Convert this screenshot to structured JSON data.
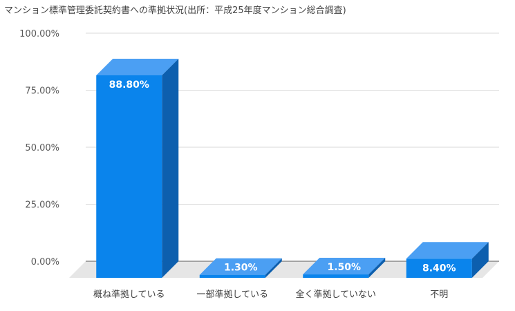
{
  "chart_data": {
    "type": "bar",
    "title": "マンション標準管理委託契約書への準拠状況(出所：平成25年度マンション総合調査)",
    "categories": [
      "概ね準拠している",
      "一部準拠している",
      "全く準拠していない",
      "不明"
    ],
    "values": [
      88.8,
      1.3,
      1.5,
      8.4
    ],
    "data_labels": [
      "88.80%",
      "1.30%",
      "1.50%",
      "8.40%"
    ],
    "ylim": [
      0,
      100
    ],
    "yticks": [
      0,
      25,
      50,
      75,
      100
    ],
    "ytick_labels": [
      "0.00%",
      "25.00%",
      "50.00%",
      "75.00%",
      "100.00%"
    ],
    "grid": true,
    "legend": "none",
    "three_d": true,
    "colors": {
      "bar_front": "#0a84ec",
      "bar_top": "#4b9ff3",
      "bar_side": "#0d5fae",
      "floor": "#e6e6e6",
      "grid": "#d9d9d9"
    }
  }
}
